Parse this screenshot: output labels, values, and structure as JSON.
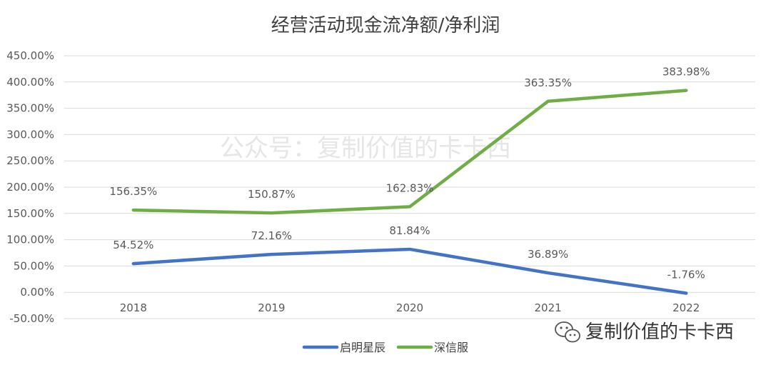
{
  "chart_data": {
    "type": "line",
    "title": "经营活动现金流净额/净利润",
    "categories": [
      "2018",
      "2019",
      "2020",
      "2021",
      "2022"
    ],
    "y_tick_labels": [
      "450.00%",
      "400.00%",
      "350.00%",
      "300.00%",
      "250.00%",
      "200.00%",
      "150.00%",
      "100.00%",
      "50.00%",
      "0.00%",
      "-50.00%"
    ],
    "ylim": [
      -50,
      450
    ],
    "grid": true,
    "legend_position": "bottom",
    "series": [
      {
        "name": "启明星辰",
        "color": "#4472C4",
        "values": [
          54.52,
          72.16,
          81.84,
          36.89,
          -1.76
        ],
        "labels": [
          "54.52%",
          "72.16%",
          "81.84%",
          "36.89%",
          "-1.76%"
        ]
      },
      {
        "name": "深信服",
        "color": "#70AD47",
        "values": [
          156.35,
          150.87,
          162.83,
          363.35,
          383.98
        ],
        "labels": [
          "156.35%",
          "150.87%",
          "162.83%",
          "363.35%",
          "383.98%"
        ]
      }
    ]
  },
  "watermark": "公众号：复制价值的卡卡西",
  "brand": {
    "text": "复制价值的卡卡西",
    "icon": "wechat-icon"
  }
}
